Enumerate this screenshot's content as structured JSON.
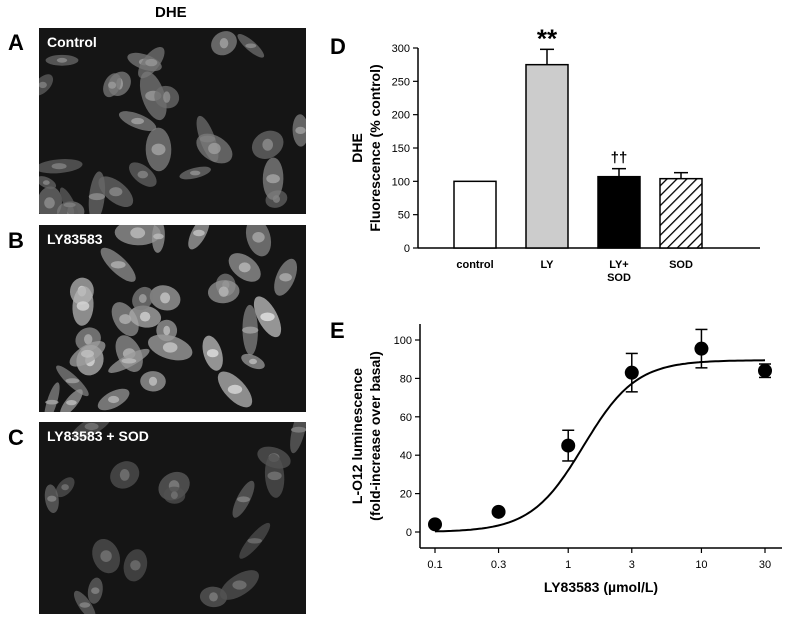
{
  "figure": {
    "column_header": "DHE",
    "panels": [
      {
        "letter": "A",
        "label": "Control",
        "intensity": 0.55,
        "density": 0.7
      },
      {
        "letter": "B",
        "label": "LY83583",
        "intensity": 0.95,
        "density": 0.85
      },
      {
        "letter": "C",
        "label": "LY83583 + SOD",
        "intensity": 0.35,
        "density": 0.45
      }
    ]
  },
  "panel_d": {
    "letter": "D"
  },
  "panel_e": {
    "letter": "E"
  },
  "chart_data": [
    {
      "type": "bar",
      "panel": "D",
      "ylabel_line1": "DHE",
      "ylabel_line2": "Fluorescence (% control)",
      "ylim": [
        0,
        300
      ],
      "yticks": [
        0,
        50,
        100,
        150,
        200,
        250,
        300
      ],
      "categories": [
        "control",
        "LY",
        "LY+\nSOD",
        "SOD"
      ],
      "values": [
        100,
        275,
        107,
        104
      ],
      "errors": [
        0,
        23,
        12,
        9
      ],
      "fills": [
        "#ffffff",
        "#cccccc",
        "#000000",
        "hatch"
      ],
      "annotations": [
        "",
        "**",
        "††",
        ""
      ]
    },
    {
      "type": "scatter",
      "panel": "E",
      "xlabel": "LY83583 (µmol/L)",
      "ylabel_line1": "L-O12 luminescence",
      "ylabel_line2": "(fold-increase over basal)",
      "xscale": "log",
      "xlim": [
        0.1,
        30
      ],
      "xticks": [
        "0.1",
        "0.3",
        "1",
        "3",
        "10",
        "30"
      ],
      "ylim": [
        0,
        100
      ],
      "yticks": [
        0,
        20,
        40,
        60,
        80,
        100
      ],
      "x": [
        0.1,
        0.3,
        1,
        3,
        10,
        30
      ],
      "y": [
        4,
        10.5,
        45,
        83,
        95.5,
        84
      ],
      "errors": [
        0,
        0,
        8,
        10,
        10,
        3.5
      ],
      "fit_curve": true,
      "fit": {
        "bottom": 0,
        "top": 89.5,
        "ec50": 1.3,
        "hill": 2.2
      }
    }
  ]
}
